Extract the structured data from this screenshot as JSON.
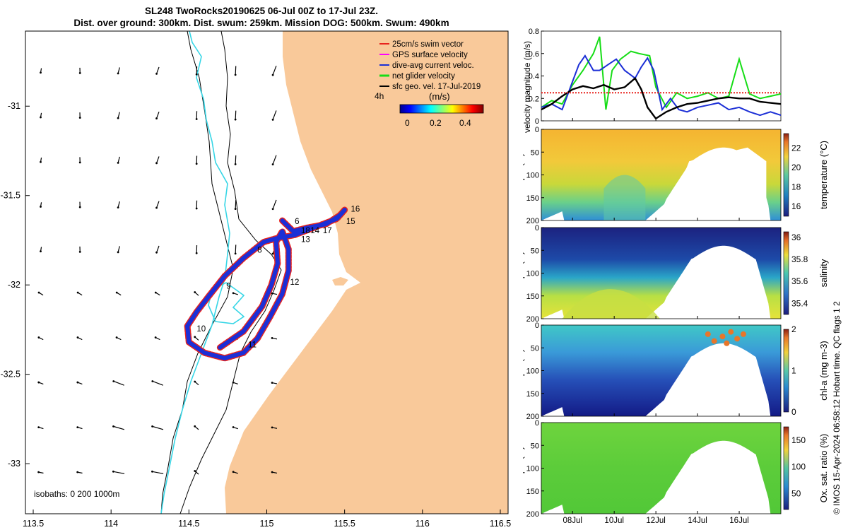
{
  "header": {
    "title_line1": "SL248 TwoRocks20190625 06-Jul 00Z to 17-Jul 23Z.",
    "title_line2": "Dist. over ground: 300km. Dist. swum: 259km. Mission DOG: 500km. Swum: 490km"
  },
  "credit": "© IMOS 15-Apr-2024 06:58:12 Hobart time. QC flags 1  2",
  "colors": {
    "land": "#f9c99a",
    "sea": "#ffffff",
    "track_red": "#e8231e",
    "track_blue": "#1c2fd6",
    "gps": "#ff00ff",
    "dive_avg": "#1c2fd6",
    "net_glider": "#16dd16",
    "sfc_geo": "#000000",
    "coast_cyan": "#37d6e6"
  },
  "chart_data": [
    {
      "type": "scatter",
      "name": "map",
      "xlim": [
        113.45,
        116.55
      ],
      "ylim": [
        -33.28,
        -30.58
      ],
      "x_ticks": [
        "113.5",
        "114",
        "114.5",
        "115",
        "115.5",
        "116",
        "116.5"
      ],
      "x_tick_values": [
        113.5,
        114,
        114.5,
        115,
        115.5,
        116,
        116.5
      ],
      "y_ticks": [
        "-31",
        "-31.5",
        "-32",
        "-32.5",
        "-33"
      ],
      "y_tick_values": [
        -31,
        -31.5,
        -32,
        -32.5,
        -33
      ],
      "legend": [
        {
          "label": "25cm/s swim vector",
          "color": "#e8231e"
        },
        {
          "label": "GPS surface velocity",
          "color": "#ff00ff"
        },
        {
          "label": "dive-avg current veloc.",
          "color": "#1c2fd6"
        },
        {
          "label": "net glider velocity",
          "color": "#16dd16"
        },
        {
          "label": "sfc geo. vel. 17-Jul-2019",
          "color": "#000000"
        }
      ],
      "time_marker": "4h",
      "colorbar": {
        "label": "(m/s)",
        "ticks": [
          "0",
          "0.2",
          "0.4"
        ],
        "range": [
          0,
          0.5
        ]
      },
      "isobaths_label": "isobaths: 0   200  1000m",
      "day_labels": [
        {
          "text": "6",
          "lon": 115.18,
          "lat": -31.66
        },
        {
          "text": "8",
          "lon": 114.94,
          "lat": -31.82
        },
        {
          "text": "9",
          "lon": 114.74,
          "lat": -32.02
        },
        {
          "text": "10",
          "lon": 114.55,
          "lat": -32.26
        },
        {
          "text": "11",
          "lon": 114.88,
          "lat": -32.35
        },
        {
          "text": "12",
          "lon": 115.15,
          "lat": -32.0
        },
        {
          "text": "13",
          "lon": 115.22,
          "lat": -31.76
        },
        {
          "text": "14",
          "lon": 115.28,
          "lat": -31.71
        },
        {
          "text": "15",
          "lon": 115.51,
          "lat": -31.66
        },
        {
          "text": "16",
          "lon": 115.54,
          "lat": -31.59
        },
        {
          "text": "17",
          "lon": 115.36,
          "lat": -31.71
        },
        {
          "text": "18",
          "lon": 115.22,
          "lat": -31.71
        }
      ],
      "track": [
        [
          115.1,
          -31.64
        ],
        [
          115.17,
          -31.7
        ],
        [
          115.26,
          -31.68
        ],
        [
          115.38,
          -31.66
        ],
        [
          115.47,
          -31.61
        ],
        [
          115.5,
          -31.58
        ],
        [
          115.45,
          -31.63
        ],
        [
          115.3,
          -31.68
        ],
        [
          115.18,
          -31.72
        ],
        [
          115.06,
          -31.74
        ],
        [
          114.98,
          -31.76
        ],
        [
          114.85,
          -31.85
        ],
        [
          114.73,
          -31.95
        ],
        [
          114.63,
          -32.06
        ],
        [
          114.55,
          -32.15
        ],
        [
          114.49,
          -32.23
        ],
        [
          114.5,
          -32.32
        ],
        [
          114.6,
          -32.38
        ],
        [
          114.73,
          -32.41
        ],
        [
          114.85,
          -32.38
        ],
        [
          114.94,
          -32.3
        ],
        [
          115.02,
          -32.18
        ],
        [
          115.1,
          -32.05
        ],
        [
          115.14,
          -31.92
        ],
        [
          115.14,
          -31.8
        ],
        [
          115.1,
          -31.7
        ],
        [
          115.06,
          -31.76
        ],
        [
          115.07,
          -31.88
        ],
        [
          115.03,
          -32.0
        ],
        [
          114.97,
          -32.12
        ],
        [
          114.85,
          -32.26
        ],
        [
          114.7,
          -32.35
        ]
      ]
    },
    {
      "type": "line",
      "name": "velocity magnitude",
      "ylabel": "velocity magnitude (m/s)",
      "ylim": [
        0,
        0.8
      ],
      "y_ticks": [
        "0",
        "0.2",
        "0.4",
        "0.6",
        "0.8"
      ],
      "xlim": [
        6.5,
        18.0
      ],
      "series": [
        {
          "name": "net glider velocity",
          "color": "#16dd16",
          "x": [
            6.5,
            7.0,
            7.5,
            8.0,
            8.5,
            9.0,
            9.3,
            9.6,
            9.9,
            10.3,
            10.8,
            11.2,
            11.7,
            12.0,
            12.5,
            13.0,
            13.5,
            14.0,
            14.5,
            15.0,
            15.5,
            16.0,
            16.5,
            17.0,
            17.5,
            18.0
          ],
          "values": [
            0.12,
            0.18,
            0.15,
            0.32,
            0.45,
            0.6,
            0.75,
            0.1,
            0.45,
            0.55,
            0.62,
            0.6,
            0.58,
            0.3,
            0.12,
            0.25,
            0.2,
            0.22,
            0.25,
            0.2,
            0.22,
            0.55,
            0.24,
            0.2,
            0.22,
            0.24
          ]
        },
        {
          "name": "dive-avg current veloc.",
          "color": "#1c2fd6",
          "x": [
            6.5,
            7.0,
            7.5,
            8.0,
            8.3,
            8.6,
            9.0,
            9.3,
            9.7,
            10.1,
            10.5,
            11.0,
            11.3,
            11.6,
            11.9,
            12.3,
            12.7,
            13.1,
            13.5,
            14.0,
            14.5,
            15.0,
            15.5,
            16.0,
            16.5,
            17.0,
            17.5,
            18.0
          ],
          "values": [
            0.12,
            0.15,
            0.1,
            0.35,
            0.5,
            0.58,
            0.45,
            0.45,
            0.5,
            0.55,
            0.45,
            0.38,
            0.48,
            0.56,
            0.45,
            0.1,
            0.2,
            0.1,
            0.08,
            0.12,
            0.14,
            0.16,
            0.1,
            0.12,
            0.08,
            0.05,
            0.08,
            0.05
          ]
        },
        {
          "name": "sfc geo. vel.",
          "color": "#000000",
          "x": [
            6.5,
            7.0,
            7.5,
            8.0,
            8.5,
            9.0,
            9.5,
            10.0,
            10.5,
            11.0,
            11.3,
            11.6,
            12.0,
            12.5,
            13.0,
            13.5,
            14.0,
            14.5,
            15.0,
            15.5,
            16.0,
            16.5,
            17.0,
            17.5,
            18.0
          ],
          "values": [
            0.1,
            0.15,
            0.22,
            0.28,
            0.31,
            0.29,
            0.32,
            0.28,
            0.3,
            0.38,
            0.28,
            0.12,
            0.02,
            0.08,
            0.12,
            0.15,
            0.16,
            0.18,
            0.2,
            0.21,
            0.2,
            0.2,
            0.17,
            0.16,
            0.15
          ]
        },
        {
          "name": "25cm/s swim vector",
          "color": "#e8231e",
          "x": [
            6.5,
            18.0
          ],
          "values": [
            0.25,
            0.25
          ]
        }
      ]
    },
    {
      "type": "heatmap",
      "name": "temperature",
      "ylabel": "Depth (m)",
      "colorbar_label": "temperature (°C)",
      "colorbar_ticks": [
        "16",
        "18",
        "20",
        "22"
      ],
      "crange": [
        15,
        23.5
      ],
      "ylim": [
        200,
        0
      ],
      "y_ticks": [
        "0",
        "50",
        "100",
        "150",
        "200"
      ]
    },
    {
      "type": "heatmap",
      "name": "salinity",
      "ylabel": "Depth (m)",
      "colorbar_label": "salinity",
      "colorbar_ticks": [
        "35.4",
        "35.6",
        "35.8",
        "36"
      ],
      "crange": [
        35.3,
        36.05
      ],
      "ylim": [
        200,
        0
      ],
      "y_ticks": [
        "0",
        "50",
        "100",
        "150",
        "200"
      ]
    },
    {
      "type": "heatmap",
      "name": "chl-a",
      "ylabel": "Depth (m)",
      "colorbar_label": "chl-a (mg m-3)",
      "colorbar_ticks": [
        "0",
        "1",
        "2"
      ],
      "crange": [
        0,
        2
      ],
      "ylim": [
        200,
        0
      ],
      "y_ticks": [
        "0",
        "50",
        "100",
        "150",
        "200"
      ]
    },
    {
      "type": "heatmap",
      "name": "oxygen saturation",
      "ylabel": "Depth (m)",
      "colorbar_label": "Ox. sat. ratio (%)",
      "colorbar_ticks": [
        "50",
        "100",
        "150"
      ],
      "crange": [
        20,
        175
      ],
      "ylim": [
        200,
        0
      ],
      "y_ticks": [
        "0",
        "50",
        "100",
        "150",
        "200"
      ]
    }
  ],
  "time_axis": {
    "ticks": [
      "08Jul",
      "10Jul",
      "12Jul",
      "14Jul",
      "16Jul"
    ],
    "tick_values": [
      8,
      10,
      12,
      14,
      16
    ]
  }
}
